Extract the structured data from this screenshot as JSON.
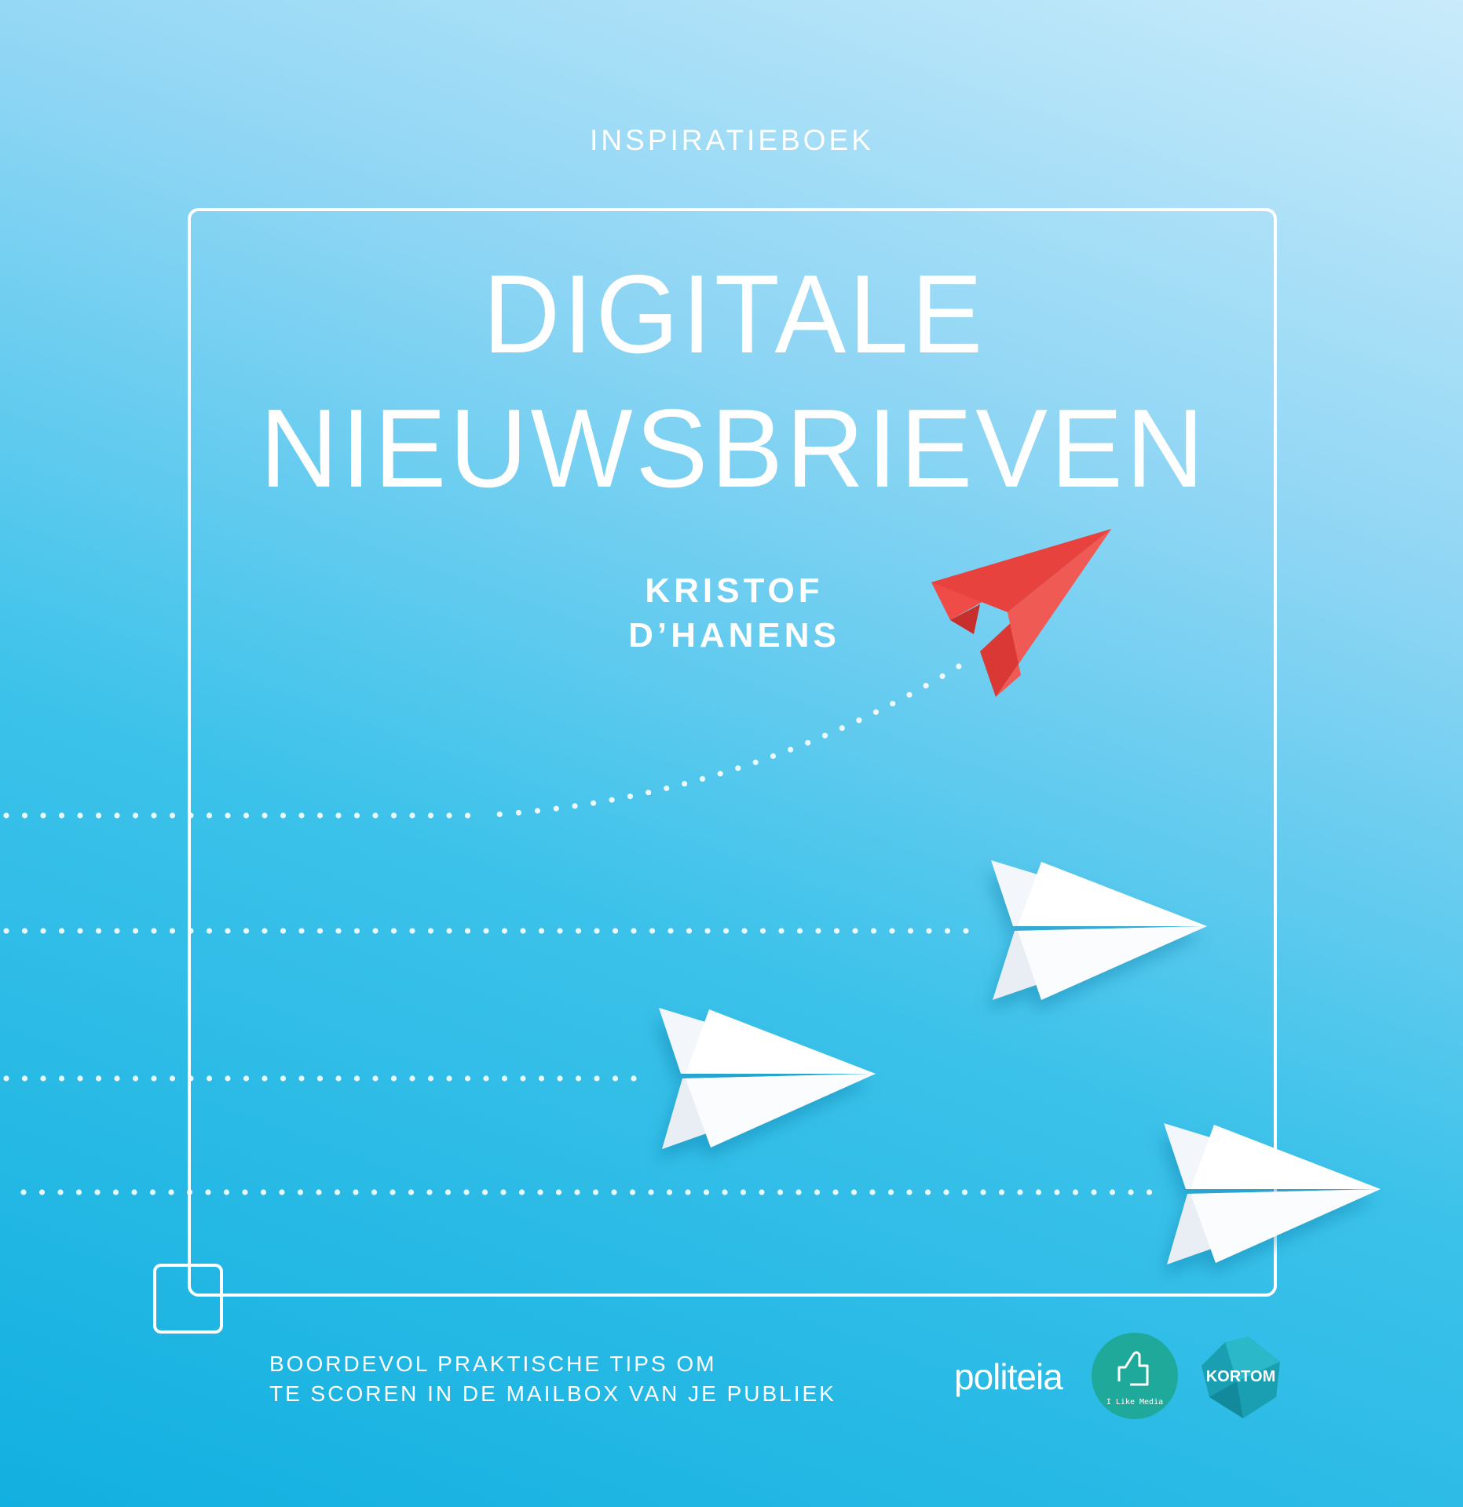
{
  "cover": {
    "label": "INSPIRATIEBOEK",
    "title_line1": "DIGITALE",
    "title_line2": "NIEUWSBRIEVEN",
    "author_line1": "KRISTOF",
    "author_line2": "D’HANENS",
    "tagline_line1": "BOORDEVOL PRAKTISCHE TIPS OM",
    "tagline_line2": "TE SCOREN IN DE MAILBOX VAN JE PUBLIEK"
  },
  "logos": {
    "politeia": "politeia",
    "ilikemedia": "I Like Media",
    "kortom": "KORTOM"
  },
  "colors": {
    "background_top": "#c9ebfb",
    "background_bottom": "#12b0e0",
    "red_plane": "#e8423f",
    "ilikemedia": "#1fa99a",
    "kortom": "#1a9fb2"
  }
}
